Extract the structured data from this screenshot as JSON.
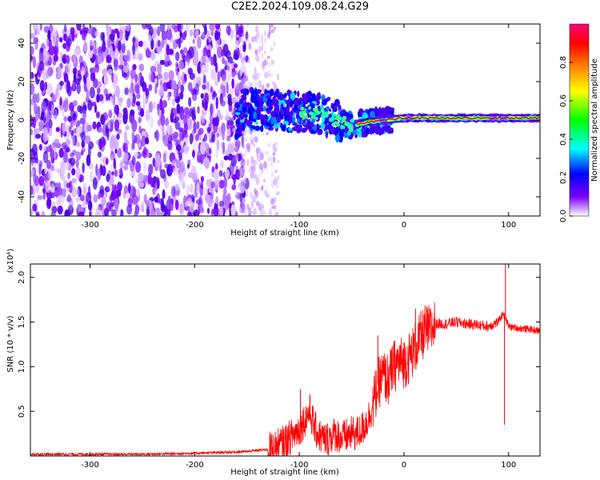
{
  "title": "C2E2.2024.109.08.24.G29",
  "chart_data": [
    {
      "type": "heatmap",
      "description": "Spectrogram of received signal vs height of straight line",
      "xlabel": "Height of straight line (km)",
      "ylabel": "Frequency (Hz)",
      "xlim": [
        -357,
        130
      ],
      "ylim": [
        -50,
        50
      ],
      "xticks": [
        -300,
        -200,
        -100,
        0,
        100
      ],
      "xtick_labels": [
        "-300",
        "-200",
        "-100",
        "0",
        "100"
      ],
      "yticks": [
        -40,
        -20,
        0,
        20,
        40
      ],
      "ytick_labels": [
        "-40",
        "-20",
        "0",
        "20",
        "40"
      ],
      "colorbar": {
        "label": "Normalized spectral amplitude",
        "range": [
          0.0,
          1.0
        ],
        "ticks": [
          0.0,
          0.2,
          0.4,
          0.6,
          0.8
        ],
        "tick_labels": [
          "0.0",
          "0.2",
          "0.4",
          "0.6",
          "0.8"
        ],
        "colors": [
          "#ffffff",
          "#7a00ff",
          "#0000ff",
          "#00ffff",
          "#00ff00",
          "#ffff00",
          "#ff8000",
          "#ff0000",
          "#ff0080"
        ]
      },
      "features": {
        "noise_region_x": [
          -357,
          -160
        ],
        "signal_center_freq": [
          [
            -155,
            6
          ],
          [
            -120,
            5
          ],
          [
            -80,
            3
          ],
          [
            -50,
            -3
          ],
          [
            -35,
            -1
          ],
          [
            0,
            1
          ],
          [
            130,
            1
          ]
        ],
        "strong_line_x": [
          -15,
          130
        ]
      }
    },
    {
      "type": "line",
      "xlabel": "Height of straight line (km)",
      "ylabel": "SNR (10 * v/v)",
      "y_multiplier": "(x10⁴)",
      "xlim": [
        -357,
        130
      ],
      "ylim": [
        0,
        2.15
      ],
      "xticks": [
        -300,
        -200,
        -100,
        0,
        100
      ],
      "xtick_labels": [
        "-300",
        "-200",
        "-100",
        "0",
        "100"
      ],
      "yticks": [
        0.5,
        1.0,
        1.5,
        2.0
      ],
      "ytick_labels": [
        "0.5",
        "1.0",
        "1.5",
        "2.0"
      ],
      "series": [
        {
          "color": "#ff0000",
          "x": [
            -357,
            -300,
            -250,
            -200,
            -150,
            -125,
            -115,
            -105,
            -100,
            -95,
            -90,
            -85,
            -80,
            -75,
            -70,
            -65,
            -60,
            -55,
            -50,
            -45,
            -40,
            -35,
            -30,
            -25,
            -20,
            -15,
            -10,
            -5,
            0,
            5,
            10,
            15,
            20,
            25,
            30,
            40,
            50,
            60,
            70,
            80,
            90,
            95,
            97,
            100,
            110,
            120,
            130
          ],
          "y": [
            0.02,
            0.02,
            0.02,
            0.03,
            0.05,
            0.08,
            0.15,
            0.25,
            0.3,
            0.4,
            0.5,
            0.3,
            0.22,
            0.18,
            0.22,
            0.25,
            0.2,
            0.22,
            0.25,
            0.25,
            0.3,
            0.4,
            0.55,
            0.8,
            0.9,
            0.85,
            1.0,
            1.05,
            1.05,
            1.1,
            1.2,
            1.3,
            1.4,
            1.4,
            1.48,
            1.48,
            1.5,
            1.48,
            1.47,
            1.45,
            1.5,
            1.6,
            1.55,
            1.45,
            1.43,
            1.42,
            1.4
          ],
          "spikes": [
            {
              "x": -99,
              "y": 0.75
            },
            {
              "x": -25,
              "y": 1.35
            },
            {
              "x": 11,
              "y": 1.65
            },
            {
              "x": 97,
              "y": 2.15
            },
            {
              "x": 96,
              "y": 0.35
            }
          ]
        }
      ]
    }
  ]
}
